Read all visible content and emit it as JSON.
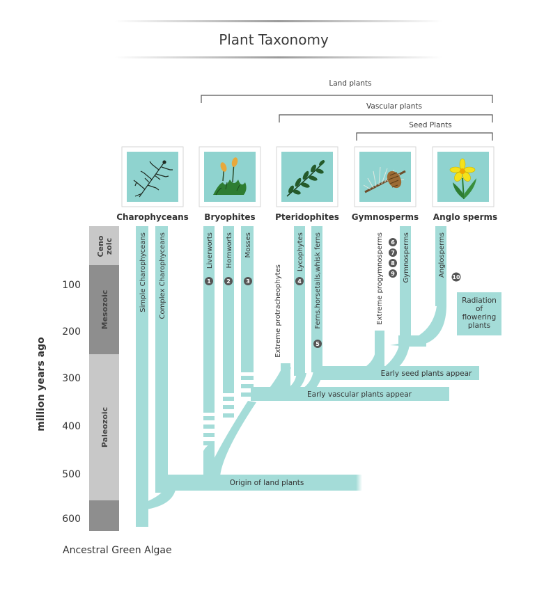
{
  "title": "Plant Taxonomy",
  "brackets": {
    "land": "Land plants",
    "vascular": "Vascular plants",
    "seed": "Seed Plants"
  },
  "groups": [
    {
      "name": "Charophyceans",
      "icon": "algae-icon"
    },
    {
      "name": "Bryophites",
      "icon": "moss-icon"
    },
    {
      "name": "Pteridophites",
      "icon": "fern-icon"
    },
    {
      "name": "Gymnosperms",
      "icon": "pine-cone-icon"
    },
    {
      "name": "Anglo sperms",
      "icon": "flower-icon"
    }
  ],
  "eras": [
    {
      "name": "Ceno zoic",
      "line1": "Ceno",
      "line2": "zoic"
    },
    {
      "name": "Mesozoic"
    },
    {
      "name": "Paleozoic"
    }
  ],
  "axis": {
    "title": "million years ago",
    "ticks": [
      "100",
      "200",
      "300",
      "400",
      "500",
      "600"
    ]
  },
  "branches": {
    "simple_charophyceans": "Simple Charophyceans",
    "complex_charophyceans": "Complex Charophyceans",
    "liverworts": "Liverworts",
    "hornworts": "Hornworts",
    "mosses": "Mosses",
    "extreme_protracheophytes": "Extreme protracheophytes",
    "lycophytes": "Lycophytes",
    "ferns": "Ferns.horsetails,whisk ferns",
    "extreme_progymnosperms": "Extreme progymnosperms",
    "gymnosperms": "Gymnosperms",
    "anglosperms": "Anglosperms"
  },
  "badges": [
    "1",
    "2",
    "3",
    "4",
    "5",
    "6",
    "7",
    "8",
    "9",
    "10"
  ],
  "events": {
    "origin": "Origin of land plants",
    "early_vascular": "Early vascular plants appear",
    "early_seed": "Early seed plants appear",
    "radiation_line1": "Radiation",
    "radiation_line2": "of",
    "radiation_line3": "flowering",
    "radiation_line4": "plants"
  },
  "root": "Ancestral Green Algae",
  "colors": {
    "branch": "#a4dcd8",
    "icon_bg": "#8fd3cf",
    "era_light": "#c8c8c8",
    "era_dark": "#8e8e8e",
    "badge": "#555555"
  }
}
